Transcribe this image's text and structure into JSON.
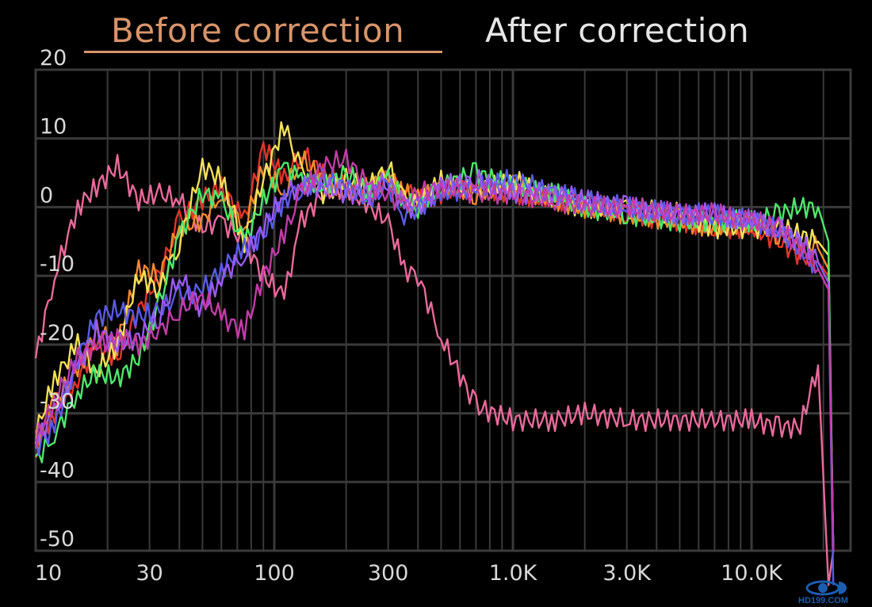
{
  "tabs": [
    {
      "label": "Before correction",
      "active": true
    },
    {
      "label": "After correction",
      "active": false
    }
  ],
  "colors": {
    "active_tab": "#d9946a",
    "inactive_tab": "#e6e6e6",
    "grid": "#3a3a3a"
  },
  "watermark": "HD199.COM",
  "chart_data": {
    "type": "line",
    "title": "",
    "xlabel": "",
    "ylabel": "",
    "xscale": "log",
    "xlim": [
      10,
      26000
    ],
    "ylim": [
      -50,
      20
    ],
    "grid": true,
    "legend": "none",
    "y_ticks": [
      20,
      10,
      0,
      -10,
      -20,
      -30,
      -40,
      -50
    ],
    "y_tick_labels": [
      "20",
      "10",
      "0",
      "-10",
      "-20",
      "-30",
      "-40",
      "-50"
    ],
    "x_ticks": [
      10,
      30,
      100,
      300,
      1000,
      3000,
      10000
    ],
    "x_tick_labels": [
      "10",
      "30",
      "100",
      "300",
      "1.0K",
      "3.0K",
      "10.0K"
    ],
    "x": [
      10,
      12,
      15,
      18,
      22,
      27,
      33,
      40,
      50,
      60,
      75,
      90,
      110,
      130,
      160,
      200,
      250,
      300,
      350,
      400,
      500,
      700,
      1000,
      1500,
      2000,
      3000,
      5000,
      7000,
      10000,
      13000,
      16000,
      19000,
      21000,
      22000
    ],
    "series": [
      {
        "name": "pink",
        "color": "#e86a9a",
        "values": [
          -22,
          -10,
          0,
          3,
          6,
          1,
          2,
          1,
          -3,
          -2,
          -5,
          -10,
          -13,
          -2,
          2,
          3,
          0,
          -2,
          -9,
          -10,
          -19,
          -29,
          -31,
          -31,
          -30,
          -31,
          -31,
          -31,
          -31,
          -32,
          -32,
          -23,
          -55,
          -50
        ]
      },
      {
        "name": "red",
        "color": "#e0352b",
        "values": [
          -34,
          -30,
          -25,
          -20,
          -22,
          -15,
          -10,
          -2,
          1,
          3,
          -2,
          9,
          4,
          8,
          5,
          3,
          2,
          4,
          3,
          1,
          2,
          3,
          2,
          1,
          1,
          -1,
          -2,
          -3,
          -3,
          -5,
          -7,
          -8,
          -10,
          -50
        ]
      },
      {
        "name": "orange",
        "color": "#f08a30",
        "values": [
          -36,
          -28,
          -24,
          -18,
          -20,
          -9,
          -10,
          -3,
          -2,
          2,
          -3,
          6,
          2,
          7,
          4,
          2,
          3,
          5,
          2,
          1,
          3,
          2,
          3,
          1,
          0,
          -1,
          -2,
          -3,
          -2,
          -4,
          -5,
          -6,
          -9,
          -50
        ]
      },
      {
        "name": "yellow",
        "color": "#f2e05a",
        "values": [
          -33,
          -25,
          -20,
          -24,
          -20,
          -10,
          -12,
          -5,
          6,
          4,
          -5,
          4,
          12,
          5,
          2,
          4,
          3,
          6,
          1,
          0,
          4,
          2,
          4,
          1,
          0,
          0,
          -1,
          -3,
          -3,
          -3,
          -4,
          -5,
          -7,
          -50
        ]
      },
      {
        "name": "green",
        "color": "#4fe66a",
        "values": [
          -37,
          -33,
          -27,
          -24,
          -25,
          -22,
          -14,
          -4,
          2,
          1,
          -5,
          1,
          6,
          4,
          3,
          5,
          2,
          4,
          1,
          0,
          3,
          5,
          3,
          2,
          0,
          -1,
          -2,
          -2,
          -2,
          -1,
          0,
          0,
          -5,
          -50
        ]
      },
      {
        "name": "blue",
        "color": "#5a5ae8",
        "values": [
          -35,
          -32,
          -22,
          -16,
          -15,
          -16,
          -15,
          -13,
          -12,
          -9,
          -6,
          -4,
          1,
          3,
          4,
          3,
          1,
          3,
          -1,
          0,
          2,
          3,
          4,
          2,
          1,
          0,
          -1,
          -1,
          -2,
          -3,
          -6,
          -9,
          -12,
          -55
        ]
      },
      {
        "name": "purple",
        "color": "#9a5af0",
        "values": [
          -34,
          -30,
          -23,
          -18,
          -20,
          -19,
          -16,
          -10,
          -15,
          -10,
          -7,
          -3,
          2,
          3,
          3,
          2,
          2,
          4,
          0,
          0,
          3,
          4,
          2,
          2,
          1,
          0,
          -1,
          -1,
          -2,
          -3,
          -5,
          -8,
          -11,
          -50
        ]
      },
      {
        "name": "magenta",
        "color": "#c03ca8",
        "values": [
          -34,
          -28,
          -22,
          -20,
          -19,
          -20,
          -18,
          -15,
          -13,
          -16,
          -18,
          -10,
          -4,
          2,
          6,
          7,
          3,
          2,
          0,
          2,
          3,
          2,
          2,
          1,
          0,
          0,
          -1,
          -1,
          -2,
          -3,
          -6,
          -9,
          -12,
          -50
        ]
      }
    ]
  }
}
